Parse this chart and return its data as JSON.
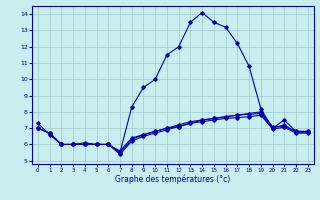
{
  "x": [
    0,
    1,
    2,
    3,
    4,
    5,
    6,
    7,
    8,
    9,
    10,
    11,
    12,
    13,
    14,
    15,
    16,
    17,
    18,
    19,
    20,
    21,
    22,
    23
  ],
  "line1": [
    7.3,
    6.6,
    6.0,
    6.0,
    6.1,
    6.0,
    6.0,
    5.5,
    8.3,
    9.5,
    10.0,
    11.5,
    12.0,
    13.5,
    14.1,
    13.5,
    13.2,
    12.2,
    10.8,
    8.2,
    7.0,
    7.5,
    6.8,
    6.8
  ],
  "line2": [
    7.0,
    6.7,
    6.0,
    6.0,
    6.0,
    6.0,
    6.0,
    5.4,
    6.2,
    6.5,
    6.7,
    6.9,
    7.1,
    7.3,
    7.5,
    7.6,
    7.7,
    7.8,
    7.9,
    8.0,
    7.1,
    7.1,
    6.8,
    6.8
  ],
  "line3": [
    7.0,
    6.7,
    6.0,
    6.0,
    6.0,
    6.0,
    6.0,
    5.5,
    6.3,
    6.6,
    6.8,
    7.0,
    7.2,
    7.4,
    7.5,
    7.6,
    7.7,
    7.8,
    7.85,
    7.9,
    7.0,
    7.2,
    6.75,
    6.75
  ],
  "line4": [
    7.0,
    6.7,
    6.0,
    6.0,
    6.0,
    6.0,
    6.0,
    5.6,
    6.4,
    6.6,
    6.8,
    7.0,
    7.1,
    7.3,
    7.4,
    7.5,
    7.6,
    7.65,
    7.7,
    7.8,
    6.95,
    7.05,
    6.7,
    6.7
  ],
  "line_color": "#0000aa",
  "bg_color": "#c8eef0",
  "grid_color": "#a0c8cc",
  "xlabel": "Graphe des températures (°c)",
  "xlim": [
    -0.5,
    23.5
  ],
  "ylim": [
    4.8,
    14.5
  ],
  "yticks": [
    5,
    6,
    7,
    8,
    9,
    10,
    11,
    12,
    13,
    14
  ],
  "xticks": [
    0,
    1,
    2,
    3,
    4,
    5,
    6,
    7,
    8,
    9,
    10,
    11,
    12,
    13,
    14,
    15,
    16,
    17,
    18,
    19,
    20,
    21,
    22,
    23
  ]
}
